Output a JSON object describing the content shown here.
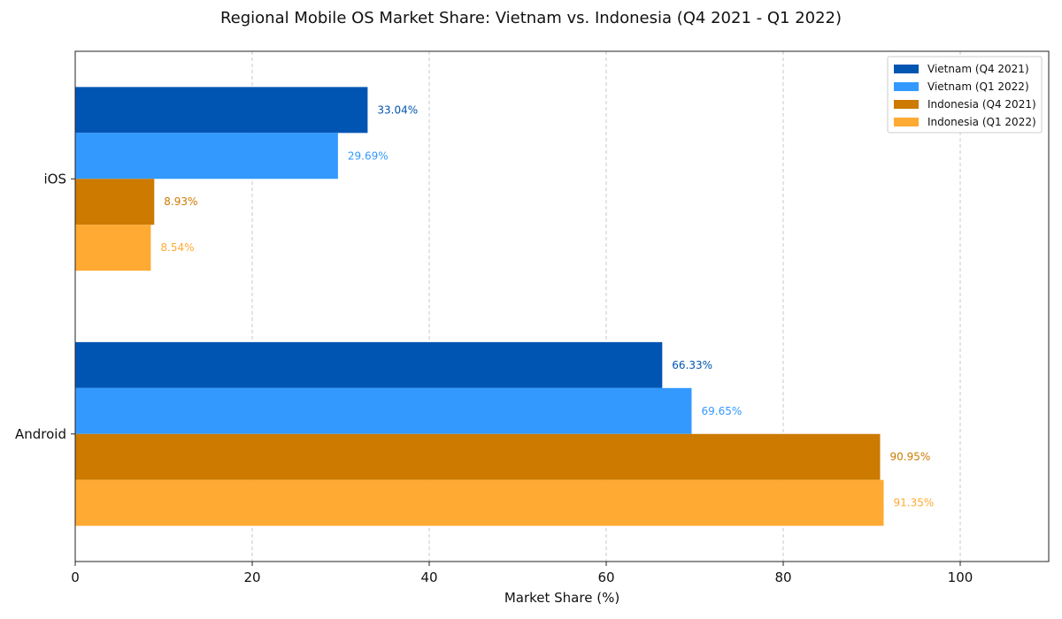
{
  "chart_data": {
    "type": "bar",
    "orientation": "horizontal",
    "title": "Regional Mobile OS Market Share: Vietnam vs. Indonesia (Q4 2021 - Q1 2022)",
    "xlabel": "Market Share (%)",
    "ylabel": "",
    "xlim": [
      0,
      110
    ],
    "xticks": [
      0,
      20,
      40,
      60,
      80,
      100
    ],
    "grid": "x-dashed",
    "legend_position": "top-right",
    "categories": [
      "iOS",
      "Android"
    ],
    "series": [
      {
        "name": "Vietnam (Q4 2021)",
        "color": "#0055b3",
        "values": [
          33.04,
          66.33
        ],
        "labels": [
          "33.04%",
          "66.33%"
        ]
      },
      {
        "name": "Vietnam (Q1 2022)",
        "color": "#3399ff",
        "values": [
          29.69,
          69.65
        ],
        "labels": [
          "29.69%",
          "69.65%"
        ]
      },
      {
        "name": "Indonesia (Q4 2021)",
        "color": "#cc7a00",
        "values": [
          8.93,
          90.95
        ],
        "labels": [
          "8.93%",
          "90.95%"
        ]
      },
      {
        "name": "Indonesia (Q1 2022)",
        "color": "#ffaa33",
        "values": [
          8.54,
          91.35
        ],
        "labels": [
          "8.54%",
          "91.35%"
        ]
      }
    ]
  }
}
